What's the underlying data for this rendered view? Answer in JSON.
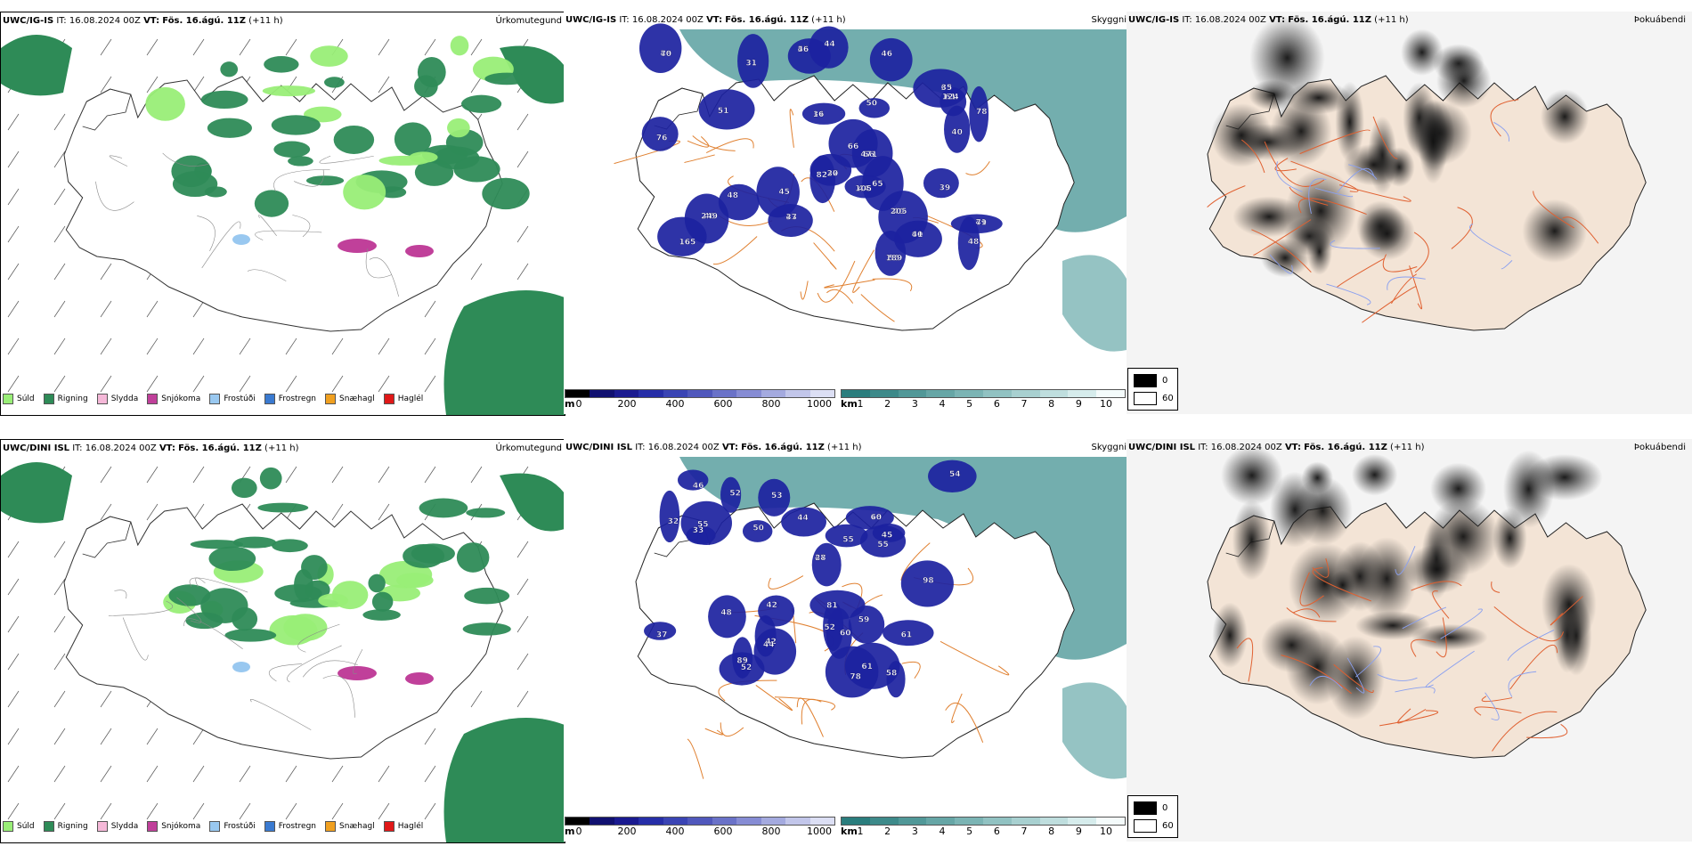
{
  "rows": [
    {
      "model": "UWC/IG-IS",
      "it_label": "IT:",
      "it_value": "16.08.2024 00Z",
      "vt_label": "VT:",
      "vt_value": "Fös. 16.ágú. 11Z",
      "offset": "(+11 h)",
      "precip_title": "Úrkomutegund",
      "vis_title": "Skyggni",
      "fog_title": "Þokuábendi",
      "cloud_labels": [
        "55",
        "40",
        "63",
        "60",
        "46",
        "44",
        "49",
        "61",
        "55",
        "56",
        "46",
        "40",
        "37",
        "34",
        "43",
        "48",
        "66",
        "45",
        "82",
        "165",
        "31",
        "48",
        "50",
        "39",
        "51",
        "78",
        "46",
        "76",
        "65",
        "44",
        "46",
        "40",
        "35",
        "41",
        "70",
        "105",
        "71",
        "124",
        "189",
        "471",
        "249",
        "205",
        "20",
        "16",
        "37"
      ]
    },
    {
      "model": "UWC/DINI ISL",
      "it_label": "IT:",
      "it_value": "16.08.2024 00Z",
      "vt_label": "VT:",
      "vt_value": "Fös. 16.ágú. 11Z",
      "offset": "(+11 h)",
      "precip_title": "Úrkomutegund",
      "vis_title": "Skyggni",
      "fog_title": "Þokuábendi",
      "cloud_labels": [
        "47",
        "35",
        "46",
        "44",
        "42",
        "45",
        "52",
        "33",
        "32",
        "52",
        "53",
        "42",
        "37",
        "61",
        "50",
        "44",
        "55",
        "60",
        "48",
        "46",
        "61",
        "52",
        "59",
        "78",
        "55",
        "54",
        "58",
        "55",
        "81",
        "98",
        "28",
        "89",
        "60"
      ]
    }
  ],
  "precip_legend": [
    {
      "label": "Súld",
      "color": "#99ee77"
    },
    {
      "label": "Rigning",
      "color": "#2e8b57"
    },
    {
      "label": "Slydda",
      "color": "#f5b8d8"
    },
    {
      "label": "Snjókoma",
      "color": "#c0409a"
    },
    {
      "label": "Frostúði",
      "color": "#99c8f0"
    },
    {
      "label": "Frostregn",
      "color": "#3a7ad0"
    },
    {
      "label": "Snæhagl",
      "color": "#f0a020"
    },
    {
      "label": "Haglél",
      "color": "#e01818"
    }
  ],
  "cloudbase_scale": {
    "unit": "m",
    "ticks": [
      "0",
      "200",
      "400",
      "600",
      "800",
      "1000"
    ],
    "colors": [
      "#000000",
      "#101070",
      "#1a1a90",
      "#262ea8",
      "#3a44b4",
      "#5058bc",
      "#6a72c8",
      "#868cd4",
      "#a4aadf",
      "#c2c6ea",
      "#dcdff4"
    ]
  },
  "visibility_scale": {
    "unit": "km",
    "ticks": [
      "1",
      "2",
      "3",
      "4",
      "5",
      "6",
      "7",
      "8",
      "9",
      "10"
    ],
    "colors": [
      "#2a7d7d",
      "#3d8a8a",
      "#519898",
      "#66a6a6",
      "#7bb4b4",
      "#91c2c2",
      "#a8d0d0",
      "#bfdede",
      "#d6ecec",
      "#f4fbfb"
    ]
  },
  "fog_legend": {
    "high": "0",
    "low": "60"
  },
  "colors": {
    "land_fog": "#f3e4d6",
    "road": "#e06030",
    "river": "#8aa0f0",
    "vis_sea": "#5aa0a0",
    "cloud": "#1c22a0",
    "rain": "#2e8b57",
    "drizzle": "#99ee77"
  }
}
